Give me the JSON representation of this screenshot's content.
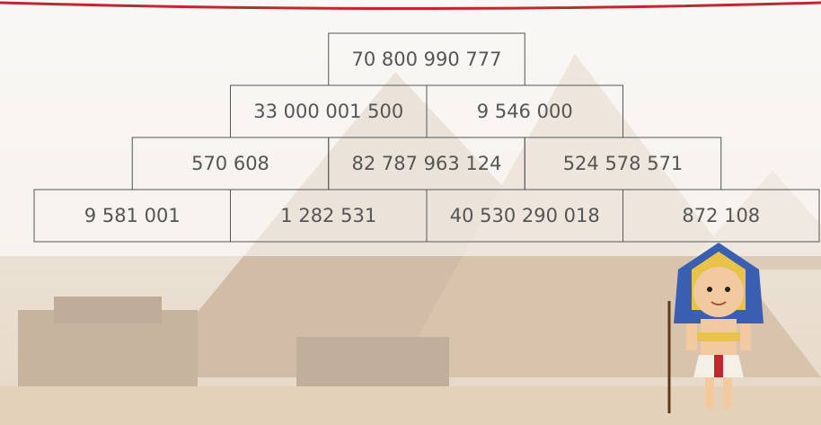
{
  "pyramid": {
    "rows": [
      [
        "70 800 990 777"
      ],
      [
        "33 000 001 500",
        "9 546 000"
      ],
      [
        "570 608",
        "82 787 963 124",
        "524 578 571"
      ],
      [
        "9 581 001",
        "1 282 531",
        "40 530 290 018",
        "872 108"
      ]
    ]
  }
}
